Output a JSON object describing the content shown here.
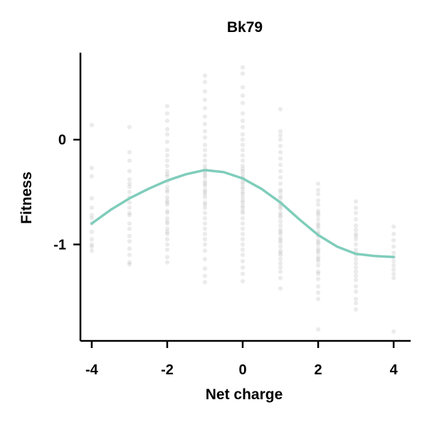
{
  "chart_data": {
    "type": "scatter",
    "title": "Bk79",
    "xlabel": "Net charge",
    "ylabel": "Fitness",
    "xlim": [
      -4.3,
      4.45
    ],
    "ylim": [
      -1.92,
      0.83
    ],
    "xticks": [
      -4,
      -2,
      0,
      2,
      4
    ],
    "xtick_labels": [
      "-4",
      "-2",
      "0",
      "2",
      "4"
    ],
    "yticks": [
      0,
      -1
    ],
    "ytick_labels": [
      "0",
      "-1"
    ],
    "grid": false,
    "colors": {
      "points": "#b8b8b8",
      "fit_line": "#7fcdbb",
      "axis": "#000000"
    },
    "series": [
      {
        "type": "scatter",
        "x": [
          -4,
          -4,
          -4,
          -4,
          -4,
          -4,
          -4,
          -4,
          -4,
          -4,
          -4,
          -4,
          -4,
          -3,
          -3,
          -3,
          -3,
          -3,
          -3,
          -3,
          -3,
          -3,
          -3,
          -3,
          -3,
          -3,
          -3,
          -3,
          -3,
          -3,
          -3,
          -3,
          -3,
          -3,
          -2,
          -2,
          -2,
          -2,
          -2,
          -2,
          -2,
          -2,
          -2,
          -2,
          -2,
          -2,
          -2,
          -2,
          -2,
          -2,
          -2,
          -2,
          -2,
          -2,
          -2,
          -2,
          -2,
          -2,
          -2,
          -2,
          -2,
          -2,
          -2,
          -2,
          -2,
          -2,
          -2,
          -2,
          -1,
          -1,
          -1,
          -1,
          -1,
          -1,
          -1,
          -1,
          -1,
          -1,
          -1,
          -1,
          -1,
          -1,
          -1,
          -1,
          -1,
          -1,
          -1,
          -1,
          -1,
          -1,
          -1,
          -1,
          -1,
          -1,
          -1,
          -1,
          -1,
          -1,
          -1,
          -1,
          -1,
          -1,
          -1,
          -1,
          -1,
          -1,
          -1,
          -1,
          -1,
          0,
          0,
          0,
          0,
          0,
          0,
          0,
          0,
          0,
          0,
          0,
          0,
          0,
          0,
          0,
          0,
          0,
          0,
          0,
          0,
          0,
          0,
          0,
          0,
          0,
          0,
          0,
          0,
          0,
          0,
          0,
          0,
          0,
          0,
          0,
          0,
          0,
          0,
          0,
          0,
          0,
          0,
          0,
          0,
          0,
          1,
          1,
          1,
          1,
          1,
          1,
          1,
          1,
          1,
          1,
          1,
          1,
          1,
          1,
          1,
          1,
          1,
          1,
          1,
          1,
          1,
          1,
          1,
          1,
          1,
          1,
          1,
          1,
          1,
          1,
          1,
          1,
          1,
          1,
          1,
          1,
          1,
          1,
          1,
          1,
          2,
          2,
          2,
          2,
          2,
          2,
          2,
          2,
          2,
          2,
          2,
          2,
          2,
          2,
          2,
          2,
          2,
          2,
          2,
          2,
          2,
          2,
          2,
          2,
          2,
          2,
          2,
          2,
          2,
          2,
          2,
          2,
          3,
          3,
          3,
          3,
          3,
          3,
          3,
          3,
          3,
          3,
          3,
          3,
          3,
          3,
          3,
          3,
          3,
          3,
          3,
          3,
          3,
          3,
          3,
          3,
          4,
          4,
          4,
          4,
          4,
          4,
          4,
          4,
          4,
          4,
          4,
          4
        ],
        "y": [
          0.14,
          -0.27,
          -0.35,
          -0.56,
          -0.65,
          -0.72,
          -0.75,
          -0.8,
          -0.88,
          -0.95,
          -1.0,
          -1.02,
          -1.06,
          0.12,
          -0.12,
          -0.2,
          -0.3,
          -0.38,
          -0.45,
          -0.5,
          -0.55,
          -0.6,
          -0.65,
          -0.72,
          -0.8,
          -0.85,
          -0.92,
          -0.97,
          -1.04,
          -1.1,
          -1.17,
          -1.19,
          -0.42,
          -0.7,
          0.32,
          0.25,
          0.18,
          0.1,
          0.05,
          -0.02,
          -0.1,
          -0.15,
          -0.2,
          -0.25,
          -0.3,
          -0.35,
          -0.4,
          -0.45,
          -0.5,
          -0.55,
          -0.6,
          -0.62,
          -0.7,
          -0.75,
          -0.8,
          -0.85,
          -0.9,
          -0.95,
          -1.0,
          -1.05,
          -1.12,
          -1.17,
          -0.33,
          -0.48,
          -0.58,
          -0.68,
          -0.78,
          -0.88,
          0.61,
          0.55,
          0.46,
          0.38,
          0.3,
          0.22,
          0.15,
          0.08,
          0.02,
          -0.05,
          -0.1,
          -0.15,
          -0.2,
          -0.25,
          -0.28,
          -0.32,
          -0.36,
          -0.4,
          -0.44,
          -0.5,
          -0.55,
          -0.6,
          -0.65,
          -0.7,
          -0.75,
          -0.8,
          -0.85,
          -0.9,
          -0.95,
          -1.0,
          -1.06,
          -1.14,
          -1.23,
          -1.3,
          -1.36,
          -0.3,
          -0.34,
          -0.42,
          -0.48,
          -0.52,
          -0.62,
          0.69,
          0.63,
          0.5,
          0.42,
          0.35,
          0.25,
          0.18,
          0.12,
          0.05,
          0.0,
          -0.05,
          -0.1,
          -0.15,
          -0.2,
          -0.25,
          -0.3,
          -0.33,
          -0.37,
          -0.4,
          -0.45,
          -0.5,
          -0.55,
          -0.6,
          -0.65,
          -0.7,
          -0.75,
          -0.8,
          -0.85,
          -0.9,
          -0.95,
          -1.0,
          -1.05,
          -1.1,
          -1.16,
          -1.22,
          -1.28,
          -1.35,
          -0.28,
          -0.36,
          -0.42,
          -0.47,
          -0.52,
          -0.58,
          -0.63,
          -0.68,
          0.29,
          0.08,
          0.04,
          0.0,
          -0.06,
          -0.12,
          -0.18,
          -0.24,
          -0.3,
          -0.36,
          -0.42,
          -0.48,
          -0.54,
          -0.6,
          -0.62,
          -0.66,
          -0.7,
          -0.74,
          -0.78,
          -0.82,
          -0.86,
          -0.9,
          -0.94,
          -0.98,
          -1.02,
          -1.06,
          -1.1,
          -1.14,
          -1.18,
          -1.22,
          -1.26,
          -1.32,
          -1.42,
          -0.5,
          -0.56,
          -0.64,
          -0.72,
          -0.88,
          -0.96,
          -1.08,
          -0.42,
          -0.48,
          -0.52,
          -0.58,
          -0.62,
          -0.68,
          -0.72,
          -0.76,
          -0.8,
          -0.84,
          -0.88,
          -0.92,
          -0.96,
          -1.0,
          -1.04,
          -1.08,
          -1.12,
          -1.16,
          -1.2,
          -1.26,
          -1.33,
          -1.4,
          -1.46,
          -1.52,
          -1.81,
          -0.7,
          -0.82,
          -0.9,
          -0.98,
          -1.06,
          -1.14,
          -1.28,
          -0.59,
          -0.65,
          -0.7,
          -0.76,
          -0.82,
          -0.86,
          -0.9,
          -0.95,
          -1.0,
          -1.05,
          -1.1,
          -1.14,
          -1.18,
          -1.22,
          -1.26,
          -1.3,
          -1.34,
          -1.4,
          -1.45,
          -1.52,
          -1.56,
          -1.62,
          -0.92,
          -1.08,
          -0.83,
          -0.9,
          -0.96,
          -1.02,
          -1.08,
          -1.12,
          -1.16,
          -1.2,
          -1.24,
          -1.28,
          -1.32,
          -1.83
        ]
      },
      {
        "type": "line",
        "x": [
          -4,
          -3.5,
          -3,
          -2.5,
          -2,
          -1.5,
          -1,
          -0.5,
          0,
          0.5,
          1,
          1.5,
          2,
          2.5,
          3,
          3.5,
          4
        ],
        "y": [
          -0.8,
          -0.67,
          -0.56,
          -0.47,
          -0.39,
          -0.33,
          -0.29,
          -0.31,
          -0.37,
          -0.47,
          -0.6,
          -0.76,
          -0.91,
          -1.02,
          -1.09,
          -1.11,
          -1.12
        ]
      }
    ]
  }
}
